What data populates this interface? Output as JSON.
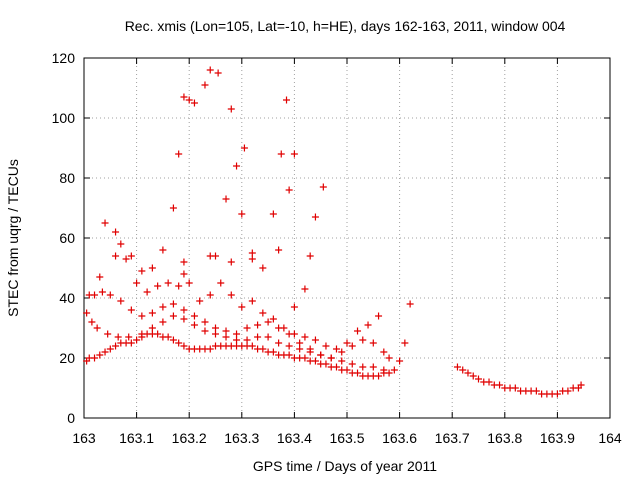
{
  "chart_data": {
    "type": "scatter",
    "title": "Rec. xmis (Lon=105, Lat=-10, h=HE), days 162-163, 2011, window 004",
    "xlabel": "GPS time / Days of year 2011",
    "ylabel": "STEC from uqrg / TECUs",
    "xlim": [
      163,
      164
    ],
    "ylim": [
      0,
      120
    ],
    "xticks": [
      "163",
      "163.1",
      "163.2",
      "163.3",
      "163.4",
      "163.5",
      "163.6",
      "163.7",
      "163.8",
      "163.9",
      "164"
    ],
    "yticks": [
      "0",
      "20",
      "40",
      "60",
      "80",
      "100",
      "120"
    ],
    "grid": true,
    "marker": "plus",
    "color": "#e00000",
    "series": [
      {
        "points": [
          [
            163.005,
            19
          ],
          [
            163.01,
            20
          ],
          [
            163.02,
            20
          ],
          [
            163.03,
            21
          ],
          [
            163.04,
            22
          ],
          [
            163.05,
            23
          ],
          [
            163.06,
            24
          ],
          [
            163.07,
            25
          ],
          [
            163.08,
            25
          ],
          [
            163.09,
            25
          ],
          [
            163.1,
            26
          ],
          [
            163.11,
            27
          ],
          [
            163.12,
            28
          ],
          [
            163.13,
            28
          ],
          [
            163.14,
            28
          ],
          [
            163.15,
            27
          ],
          [
            163.16,
            27
          ],
          [
            163.17,
            26
          ],
          [
            163.18,
            25
          ],
          [
            163.19,
            24
          ],
          [
            163.2,
            23
          ],
          [
            163.21,
            23
          ],
          [
            163.22,
            23
          ],
          [
            163.23,
            23
          ],
          [
            163.24,
            23
          ],
          [
            163.25,
            24
          ],
          [
            163.26,
            24
          ],
          [
            163.27,
            24
          ],
          [
            163.28,
            24
          ],
          [
            163.29,
            24
          ],
          [
            163.3,
            24
          ],
          [
            163.31,
            24
          ],
          [
            163.32,
            24
          ],
          [
            163.33,
            23
          ],
          [
            163.34,
            23
          ],
          [
            163.35,
            22
          ],
          [
            163.36,
            22
          ],
          [
            163.37,
            21
          ],
          [
            163.38,
            21
          ],
          [
            163.39,
            21
          ],
          [
            163.4,
            20
          ],
          [
            163.41,
            20
          ],
          [
            163.42,
            20
          ],
          [
            163.43,
            19
          ],
          [
            163.44,
            19
          ],
          [
            163.45,
            18
          ],
          [
            163.46,
            18
          ],
          [
            163.47,
            17
          ],
          [
            163.48,
            17
          ],
          [
            163.49,
            16
          ],
          [
            163.5,
            16
          ],
          [
            163.51,
            15
          ],
          [
            163.52,
            15
          ],
          [
            163.53,
            14
          ],
          [
            163.54,
            14
          ],
          [
            163.55,
            14
          ],
          [
            163.56,
            14
          ],
          [
            163.57,
            15
          ],
          [
            163.58,
            15
          ],
          [
            163.59,
            16
          ],
          [
            163.005,
            35
          ],
          [
            163.015,
            32
          ],
          [
            163.025,
            30
          ],
          [
            163.045,
            28
          ],
          [
            163.065,
            27
          ],
          [
            163.085,
            27
          ],
          [
            163.11,
            28
          ],
          [
            163.13,
            30
          ],
          [
            163.15,
            32
          ],
          [
            163.17,
            34
          ],
          [
            163.19,
            33
          ],
          [
            163.21,
            31
          ],
          [
            163.23,
            29
          ],
          [
            163.25,
            28
          ],
          [
            163.27,
            27
          ],
          [
            163.29,
            26
          ],
          [
            163.31,
            26
          ],
          [
            163.33,
            27
          ],
          [
            163.35,
            27
          ],
          [
            163.37,
            25
          ],
          [
            163.39,
            24
          ],
          [
            163.41,
            23
          ],
          [
            163.43,
            22
          ],
          [
            163.45,
            21
          ],
          [
            163.47,
            20
          ],
          [
            163.49,
            19
          ],
          [
            163.51,
            18
          ],
          [
            163.53,
            17
          ],
          [
            163.55,
            17
          ],
          [
            163.57,
            16
          ],
          [
            163.01,
            41
          ],
          [
            163.02,
            41
          ],
          [
            163.035,
            42
          ],
          [
            163.05,
            41
          ],
          [
            163.07,
            39
          ],
          [
            163.09,
            36
          ],
          [
            163.11,
            34
          ],
          [
            163.13,
            35
          ],
          [
            163.15,
            37
          ],
          [
            163.17,
            38
          ],
          [
            163.19,
            36
          ],
          [
            163.21,
            34
          ],
          [
            163.23,
            32
          ],
          [
            163.25,
            30
          ],
          [
            163.27,
            29
          ],
          [
            163.29,
            28
          ],
          [
            163.31,
            30
          ],
          [
            163.33,
            31
          ],
          [
            163.35,
            32
          ],
          [
            163.37,
            30
          ],
          [
            163.39,
            28
          ],
          [
            163.41,
            25
          ],
          [
            163.43,
            23
          ],
          [
            163.45,
            21
          ],
          [
            163.47,
            20
          ],
          [
            163.49,
            22
          ],
          [
            163.51,
            24
          ],
          [
            163.53,
            26
          ],
          [
            163.55,
            25
          ],
          [
            163.57,
            22
          ],
          [
            163.03,
            47
          ],
          [
            163.06,
            54
          ],
          [
            163.08,
            53
          ],
          [
            163.1,
            45
          ],
          [
            163.12,
            42
          ],
          [
            163.14,
            44
          ],
          [
            163.16,
            45
          ],
          [
            163.18,
            44
          ],
          [
            163.2,
            45
          ],
          [
            163.22,
            39
          ],
          [
            163.24,
            41
          ],
          [
            163.26,
            45
          ],
          [
            163.28,
            41
          ],
          [
            163.3,
            37
          ],
          [
            163.32,
            39
          ],
          [
            163.34,
            35
          ],
          [
            163.36,
            33
          ],
          [
            163.38,
            30
          ],
          [
            163.4,
            28
          ],
          [
            163.42,
            27
          ],
          [
            163.44,
            26
          ],
          [
            163.46,
            24
          ],
          [
            163.48,
            23
          ],
          [
            163.5,
            25
          ],
          [
            163.52,
            29
          ],
          [
            163.54,
            31
          ],
          [
            163.56,
            34
          ],
          [
            163.58,
            20
          ],
          [
            163.6,
            19
          ],
          [
            163.61,
            25
          ],
          [
            163.04,
            65
          ],
          [
            163.06,
            62
          ],
          [
            163.07,
            58
          ],
          [
            163.09,
            54
          ],
          [
            163.11,
            49
          ],
          [
            163.13,
            50
          ],
          [
            163.15,
            56
          ],
          [
            163.17,
            70
          ],
          [
            163.18,
            88
          ],
          [
            163.19,
            107
          ],
          [
            163.2,
            106
          ],
          [
            163.21,
            105
          ],
          [
            163.23,
            111
          ],
          [
            163.24,
            116
          ],
          [
            163.255,
            115
          ],
          [
            163.27,
            73
          ],
          [
            163.28,
            103
          ],
          [
            163.29,
            84
          ],
          [
            163.3,
            68
          ],
          [
            163.305,
            90
          ],
          [
            163.32,
            55
          ],
          [
            163.34,
            50
          ],
          [
            163.36,
            68
          ],
          [
            163.375,
            88
          ],
          [
            163.385,
            106
          ],
          [
            163.39,
            76
          ],
          [
            163.4,
            88
          ],
          [
            163.42,
            43
          ],
          [
            163.43,
            54
          ],
          [
            163.44,
            67
          ],
          [
            163.455,
            77
          ],
          [
            163.62,
            38
          ],
          [
            163.19,
            52
          ],
          [
            163.19,
            48
          ],
          [
            163.24,
            54
          ],
          [
            163.25,
            54
          ],
          [
            163.28,
            52
          ],
          [
            163.32,
            53
          ],
          [
            163.37,
            56
          ],
          [
            163.4,
            37
          ],
          [
            163.71,
            17
          ],
          [
            163.72,
            16
          ],
          [
            163.73,
            15
          ],
          [
            163.74,
            14
          ],
          [
            163.75,
            13
          ],
          [
            163.76,
            12
          ],
          [
            163.77,
            12
          ],
          [
            163.78,
            11
          ],
          [
            163.79,
            11
          ],
          [
            163.8,
            10
          ],
          [
            163.81,
            10
          ],
          [
            163.82,
            10
          ],
          [
            163.83,
            9
          ],
          [
            163.84,
            9
          ],
          [
            163.85,
            9
          ],
          [
            163.86,
            9
          ],
          [
            163.87,
            8
          ],
          [
            163.88,
            8
          ],
          [
            163.89,
            8
          ],
          [
            163.9,
            8
          ],
          [
            163.91,
            9
          ],
          [
            163.92,
            9
          ],
          [
            163.93,
            10
          ],
          [
            163.94,
            10
          ],
          [
            163.945,
            11
          ]
        ]
      }
    ]
  }
}
